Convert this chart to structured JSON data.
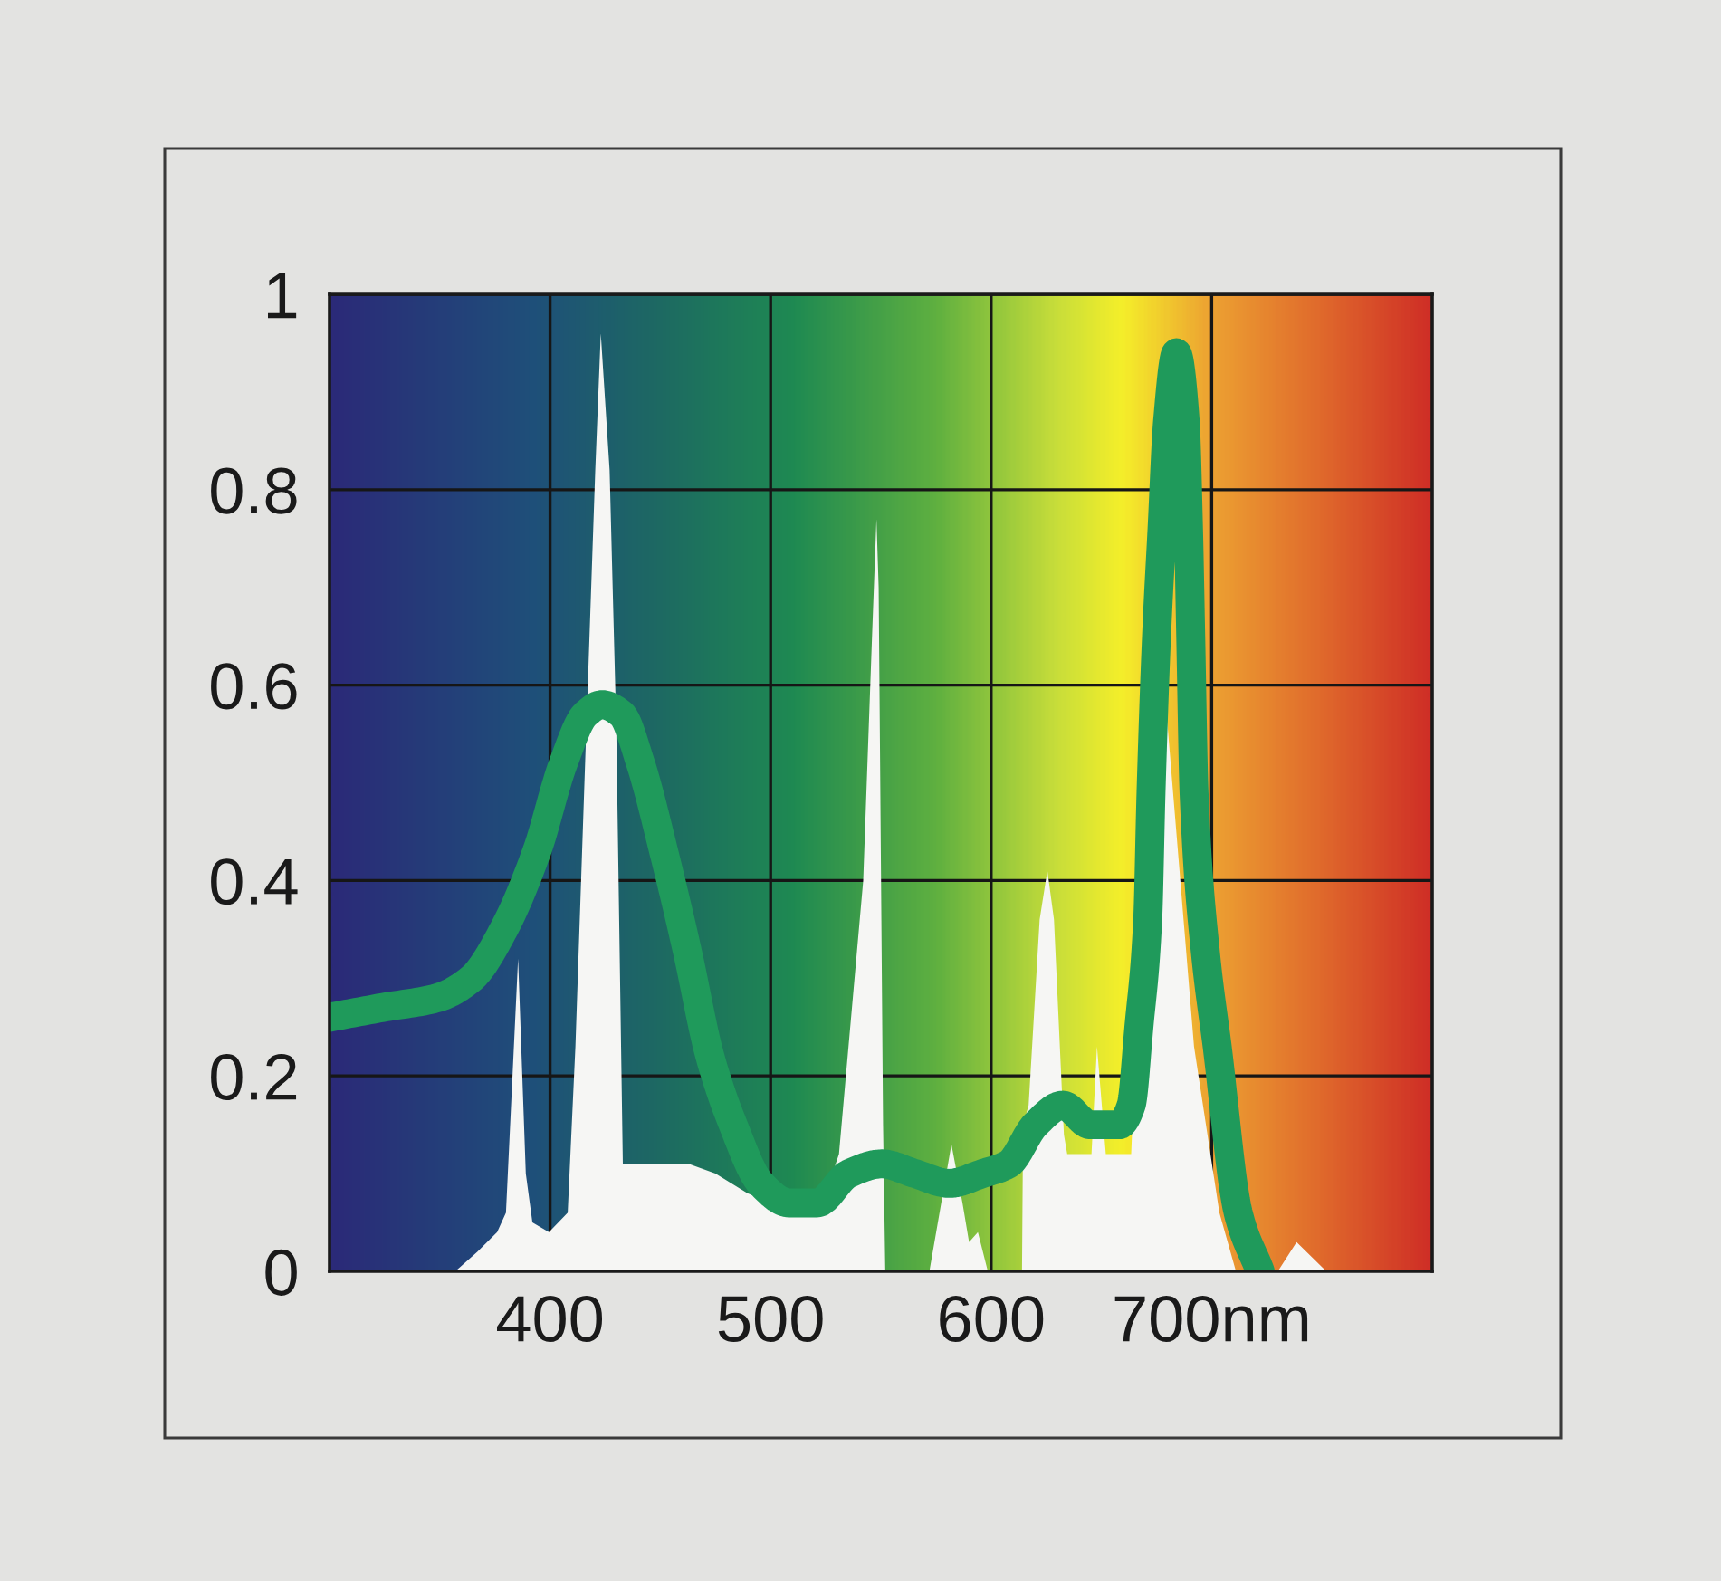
{
  "chart_data": {
    "type": "line",
    "xlim": [
      300,
      800
    ],
    "xticks": [
      400,
      500,
      600,
      {
        "value": 700,
        "label": "700nm"
      }
    ],
    "ylim": [
      0,
      1
    ],
    "yticks": [
      0,
      0.2,
      0.4,
      0.6,
      0.8,
      1
    ],
    "grid": true,
    "series": [
      {
        "type": "area",
        "color": "#f6f6f4",
        "x": [
          357,
          367,
          376,
          380,
          385.5,
          389,
          392,
          399.5,
          408,
          411.5,
          416.5,
          420.5,
          423,
          427,
          430,
          433,
          451.5,
          463,
          475,
          489.5,
          501,
          516,
          525,
          531,
          542,
          546,
          548,
          549,
          551,
          552,
          572,
          582,
          587,
          590,
          594,
          598.5,
          614,
          614.5,
          617,
          622,
          625.5,
          628.5,
          633,
          634.5,
          643,
          645.5,
          648,
          652,
          663.5,
          665,
          675.5,
          678.5,
          682.5,
          692,
          703.5,
          711,
          730,
          738.5,
          752
        ],
        "values": [
          0,
          0.02,
          0.04,
          0.06,
          0.32,
          0.1,
          0.05,
          0.04,
          0.06,
          0.23,
          0.56,
          0.82,
          0.96,
          0.82,
          0.56,
          0.11,
          0.11,
          0.11,
          0.1,
          0.08,
          0.07,
          0.06,
          0.08,
          0.12,
          0.4,
          0.65,
          0.77,
          0.7,
          0.15,
          0,
          0,
          0.13,
          0.07,
          0.03,
          0.04,
          0,
          0,
          0.15,
          0.17,
          0.36,
          0.41,
          0.36,
          0.14,
          0.12,
          0.12,
          0.12,
          0.23,
          0.12,
          0.12,
          0.2,
          0.49,
          0.6,
          0.49,
          0.23,
          0.06,
          0,
          0,
          0.03,
          0
        ]
      },
      {
        "color": "#1f9a5b",
        "x": [
          300,
          324,
          349,
          364.5,
          379,
          394,
          406,
          416,
          423.5,
          432.5,
          441,
          451.5,
          462,
          472.5,
          483,
          495.5,
          508.5,
          521,
          535.5,
          550.5,
          565.5,
          581,
          596,
          608,
          620,
          632.5,
          645,
          658,
          663.5,
          667,
          671,
          672.5,
          675,
          677.5,
          680,
          684,
          688,
          689.5,
          690.5,
          692,
          697,
          702.5,
          712,
          722
        ],
        "values": [
          0.26,
          0.27,
          0.28,
          0.3,
          0.35,
          0.43,
          0.52,
          0.57,
          0.58,
          0.57,
          0.52,
          0.43,
          0.33,
          0.22,
          0.15,
          0.09,
          0.07,
          0.07,
          0.1,
          0.11,
          0.1,
          0.09,
          0.1,
          0.11,
          0.15,
          0.17,
          0.15,
          0.15,
          0.17,
          0.25,
          0.36,
          0.49,
          0.65,
          0.76,
          0.87,
          0.94,
          0.87,
          0.76,
          0.65,
          0.49,
          0.33,
          0.23,
          0.06,
          0
        ]
      }
    ]
  }
}
